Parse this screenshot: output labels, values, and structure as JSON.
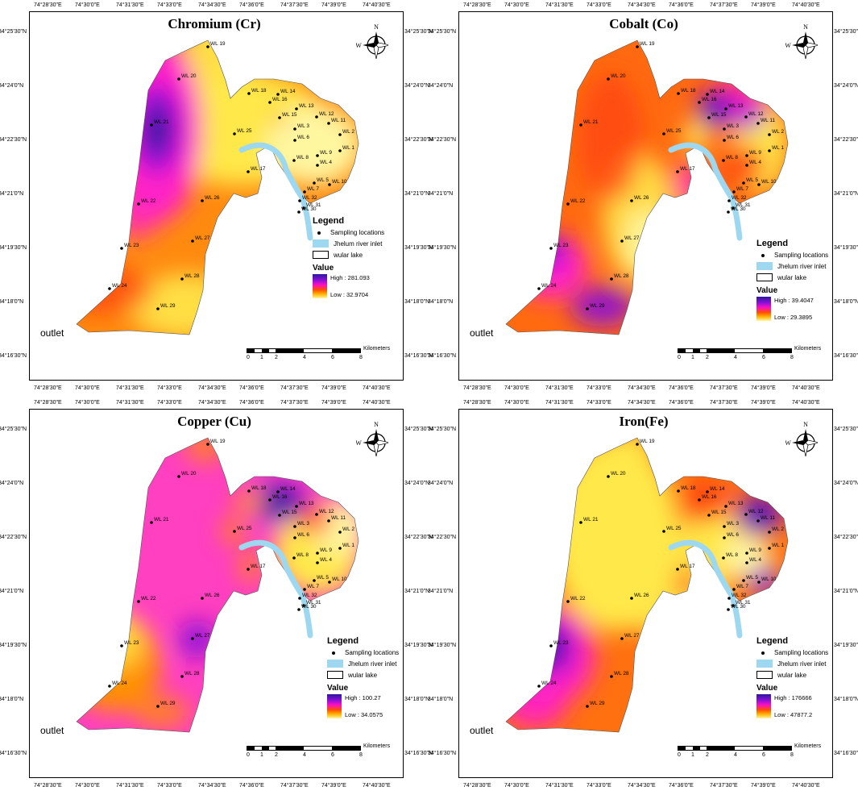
{
  "maps": [
    {
      "title": "Chromium (Cr)",
      "high": "High : 281.093",
      "low": "Low : 32.9704",
      "scheme": "cr"
    },
    {
      "title": "Cobalt (Co)",
      "high": "High : 39.4047",
      "low": "Low : 29.3895",
      "scheme": "co"
    },
    {
      "title": "Copper (Cu)",
      "high": "High : 100.27",
      "low": "Low : 34.0575",
      "scheme": "cu"
    },
    {
      "title": "Iron(Fe)",
      "high": "High : 176666",
      "low": "Low : 47877.2",
      "scheme": "fe"
    }
  ],
  "legend": {
    "title": "Legend",
    "sampling": "Sampling locations",
    "river": "Jhelum river inlet",
    "lake": "wular lake",
    "value": "Value"
  },
  "outlet_label": "outlet",
  "top_ticks": [
    "74°28'30\"E",
    "74°30'0\"E",
    "74°31'30\"E",
    "74°33'0\"E",
    "74°34'30\"E",
    "74°36'0\"E",
    "74°37'30\"E",
    "74°39'0\"E",
    "74°40'30\"E"
  ],
  "side_ticks": [
    "34°25'30\"N",
    "34°24'0\"N",
    "34°22'30\"N",
    "34°21'0\"N",
    "34°19'30\"N",
    "34°18'0\"N",
    "34°16'30\"N"
  ],
  "scale": {
    "unit": "Kilometers",
    "labels": [
      "0",
      "1",
      "2",
      "4",
      "6",
      "8"
    ]
  },
  "compass": {
    "n": "N",
    "s": "S",
    "e": "E",
    "w": "W"
  },
  "stations": [
    "WL 1",
    "WL 2",
    "WL 3",
    "WL 4",
    "WL 5",
    "WL 6",
    "WL 7",
    "WL 8",
    "WL 9",
    "WL 10",
    "WL 11",
    "WL 12",
    "WL 13",
    "WL 14",
    "WL 15",
    "WL 16",
    "WL 17",
    "WL 18",
    "WL 19",
    "WL 20",
    "WL 21",
    "WL 22",
    "WL 23",
    "WL 24",
    "WL 25",
    "WL 26",
    "WL 27",
    "WL 28",
    "WL 29",
    "WL 30",
    "WL 31",
    "WL 32"
  ],
  "colors": {
    "yellow": "#ffe84a",
    "pale": "#fff6a0",
    "orange": "#ff9000",
    "red": "#ff4010",
    "magenta": "#ff20c8",
    "purple": "#8a10d8",
    "blue": "#2a1a9a",
    "river": "#9ed8f0"
  }
}
